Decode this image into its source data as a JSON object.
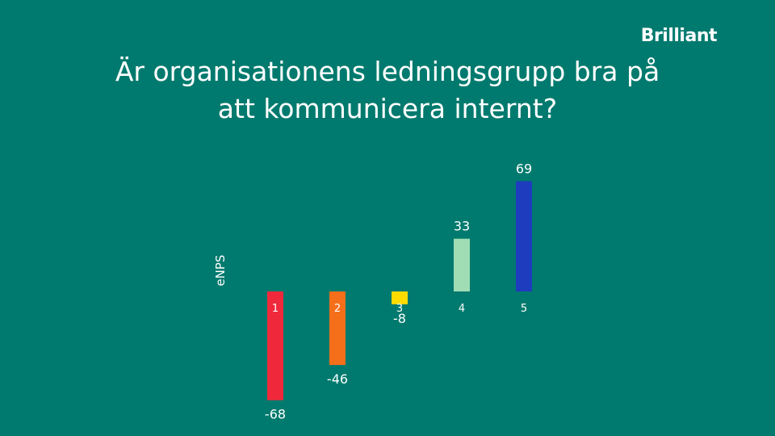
{
  "brand": {
    "logo_text": "Brilliant"
  },
  "header": {
    "title_line1": "Är organisationens ledningsgrupp bra på",
    "title_line2": "att kommunicera internt?"
  },
  "chart_data": {
    "type": "bar",
    "ylabel": "eNPS",
    "xlabel": "",
    "categories": [
      "1",
      "2",
      "3",
      "4",
      "5"
    ],
    "values": [
      -68,
      -46,
      -8,
      33,
      69
    ],
    "colors": [
      "#f0283c",
      "#f56e19",
      "#ffdc00",
      "#a0dcb4",
      "#1e3cbe"
    ],
    "grid": false,
    "legend": "none"
  }
}
